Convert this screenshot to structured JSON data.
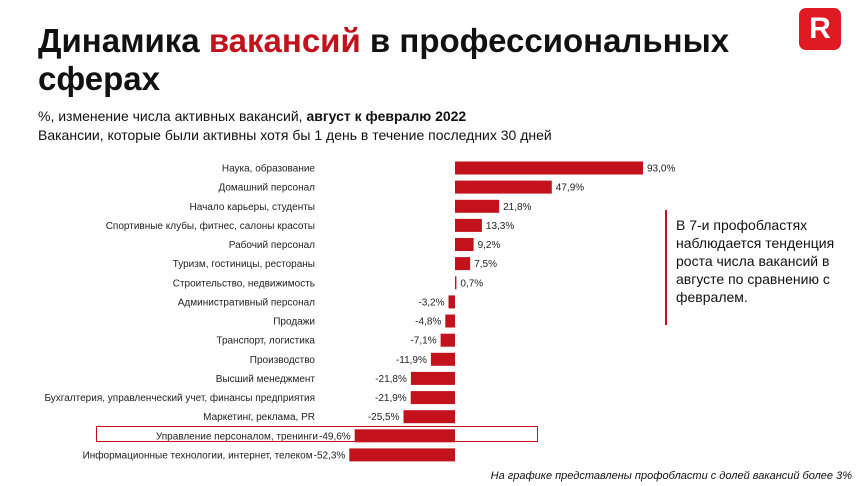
{
  "header": {
    "title_part1": "Динамика ",
    "title_accent": "вакансий",
    "title_part2": " в профессиональных сферах",
    "logo_letter": "R",
    "subtitle_prefix": "%, изменение числа активных вакансий, ",
    "subtitle_bold": "август к февралю 2022",
    "subtitle2": "Вакансии, которые были активны хотя бы 1 день в течение последних 30 дней"
  },
  "callout": {
    "text": "В 7-и профобластях наблюдается тенденция роста числа вакансий в августе по сравнению с февралем."
  },
  "footnote": "На графике представлены профобласти с долей вакансий более 3%",
  "colors": {
    "bar": "#c3121c",
    "accent": "#c3121c",
    "logo": "#e01a22"
  },
  "chart_data": {
    "type": "bar",
    "orientation": "horizontal",
    "categories": [
      "Наука, образование",
      "Домашний персонал",
      "Начало карьеры, студенты",
      "Спортивные клубы, фитнес, салоны красоты",
      "Рабочий персонал",
      "Туризм, гостиницы, рестораны",
      "Строительство, недвижимость",
      "Административный персонал",
      "Продажи",
      "Транспорт, логистика",
      "Производство",
      "Высший менеджмент",
      "Бухгалтерия, управленческий учет, финансы предприятия",
      "Маркетинг, реклама, PR",
      "Управление персоналом, тренинги",
      "Информационные технологии, интернет, телеком"
    ],
    "values": [
      93.0,
      47.9,
      21.8,
      13.3,
      9.2,
      7.5,
      0.7,
      -3.2,
      -4.8,
      -7.1,
      -11.9,
      -21.8,
      -21.9,
      -25.5,
      -49.6,
      -52.3
    ],
    "value_labels": [
      "93,0%",
      "47,9%",
      "21,8%",
      "13,3%",
      "9,2%",
      "7,5%",
      "0,7%",
      "-3,2%",
      "-4,8%",
      "-7,1%",
      "-11,9%",
      "-21,8%",
      "-21,9%",
      "-25,5%",
      "-49,6%",
      "-52,3%"
    ],
    "highlighted_category": "Управление персоналом, тренинги",
    "grid": false,
    "legend": "none"
  }
}
